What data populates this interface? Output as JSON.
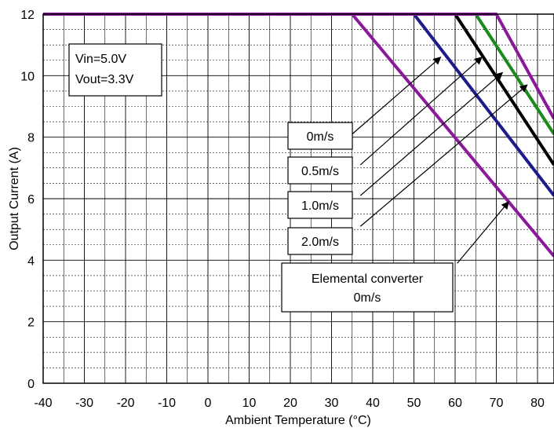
{
  "chart_data": {
    "type": "line",
    "title": "",
    "xlabel": "Ambient Temperature (°C)",
    "ylabel": "Output Current (A)",
    "xlim": [
      -40,
      84
    ],
    "ylim": [
      0,
      12
    ],
    "x_ticks": [
      -40,
      -30,
      -20,
      -10,
      0,
      10,
      20,
      30,
      40,
      50,
      60,
      70,
      80
    ],
    "y_ticks": [
      0,
      2,
      4,
      6,
      8,
      10,
      12
    ],
    "grid": true,
    "legend": "none",
    "info_box": [
      "Vin=5.0V",
      "Vout=3.3V"
    ],
    "series": [
      {
        "color": "#8b1a9a",
        "x": [
          -40,
          35,
          84
        ],
        "y": [
          12,
          12,
          4.13
        ]
      },
      {
        "color": "#1c1c8c",
        "x": [
          -40,
          50,
          84
        ],
        "y": [
          12,
          12,
          6.1
        ]
      },
      {
        "color": "#000000",
        "x": [
          -40,
          60,
          84
        ],
        "y": [
          12,
          12,
          7.1
        ]
      },
      {
        "color": "#1a8a1a",
        "x": [
          -40,
          65,
          84
        ],
        "y": [
          12,
          12,
          8.1
        ]
      },
      {
        "color": "#8b1a9a",
        "x": [
          -40,
          70,
          84
        ],
        "y": [
          12,
          12,
          8.6
        ]
      }
    ],
    "annotations": [
      {
        "label": "0m/s",
        "tail": [
          35,
          8.1
        ],
        "head": [
          56.5,
          10.6
        ]
      },
      {
        "label": "0.5m/s",
        "tail": [
          37,
          7.1
        ],
        "head": [
          66.5,
          10.6
        ]
      },
      {
        "label": "1.0m/s",
        "tail": [
          37,
          6.1
        ],
        "head": [
          71.5,
          10.1
        ]
      },
      {
        "label": "2.0m/s",
        "tail": [
          37,
          5.1
        ],
        "head": [
          77.5,
          9.7
        ]
      },
      {
        "label": "Elemental converter\n0m/s",
        "tail": [
          60.5,
          3.9
        ],
        "head": [
          73,
          5.9
        ]
      }
    ]
  }
}
